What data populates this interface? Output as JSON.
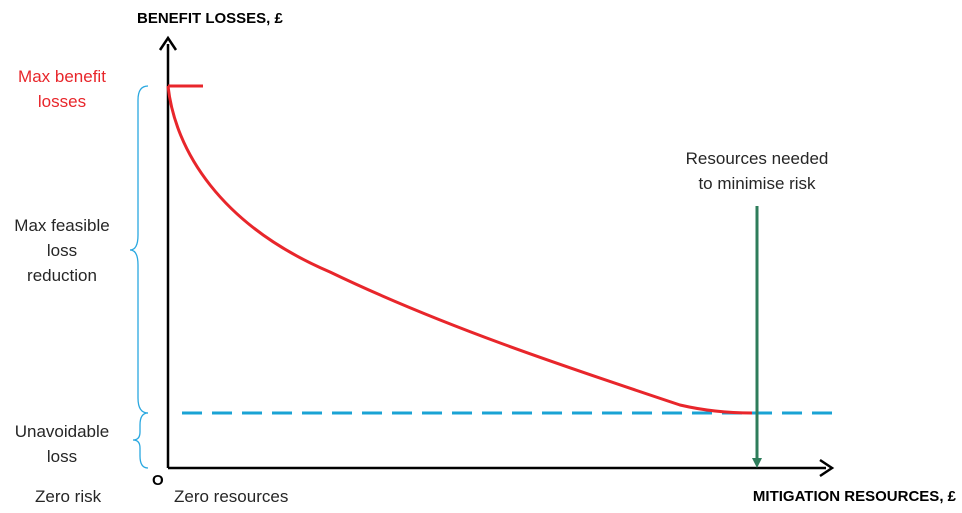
{
  "y_axis_title": "BENEFIT LOSSES, £",
  "x_axis_title": "MITIGATION RESOURCES, £",
  "origin_label": "O",
  "zero_risk_label": "Zero risk",
  "zero_resources_label": "Zero resources",
  "max_benefit_losses": [
    "Max benefit",
    "losses"
  ],
  "max_feasible_loss_reduction": [
    "Max feasible",
    "loss",
    "reduction"
  ],
  "unavoidable_loss": [
    "Unavoidable",
    "loss"
  ],
  "resources_needed": [
    "Resources needed",
    "to minimise risk"
  ],
  "colors": {
    "loss_curve": "#e8262b",
    "unavoidable_line": "#1aa3d4",
    "brace": "#2aa8e0",
    "resources_arrow": "#2e7d5b",
    "axes": "#000000"
  }
}
